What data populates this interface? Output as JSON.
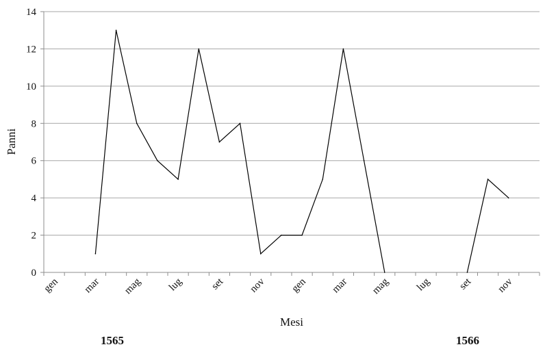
{
  "chart_data": {
    "type": "line",
    "xlabel": "Mesi",
    "ylabel": "Panni",
    "ylim": [
      0,
      14
    ],
    "yticks": [
      0,
      2,
      4,
      6,
      8,
      10,
      12,
      14
    ],
    "grid": "horizontal",
    "legend": "none",
    "x_tick_labels": [
      "gen",
      "mar",
      "mag",
      "lug",
      "set",
      "nov",
      "gen",
      "mar",
      "mag",
      "lug",
      "set",
      "nov"
    ],
    "year_labels": [
      "1565",
      "1566"
    ],
    "series": [
      {
        "color": "#000000",
        "values": [
          null,
          null,
          1,
          13,
          8,
          6,
          5,
          12,
          7,
          8,
          1,
          2,
          2,
          5,
          12,
          6,
          0,
          null,
          null,
          null,
          0,
          5,
          4,
          null
        ]
      }
    ]
  }
}
